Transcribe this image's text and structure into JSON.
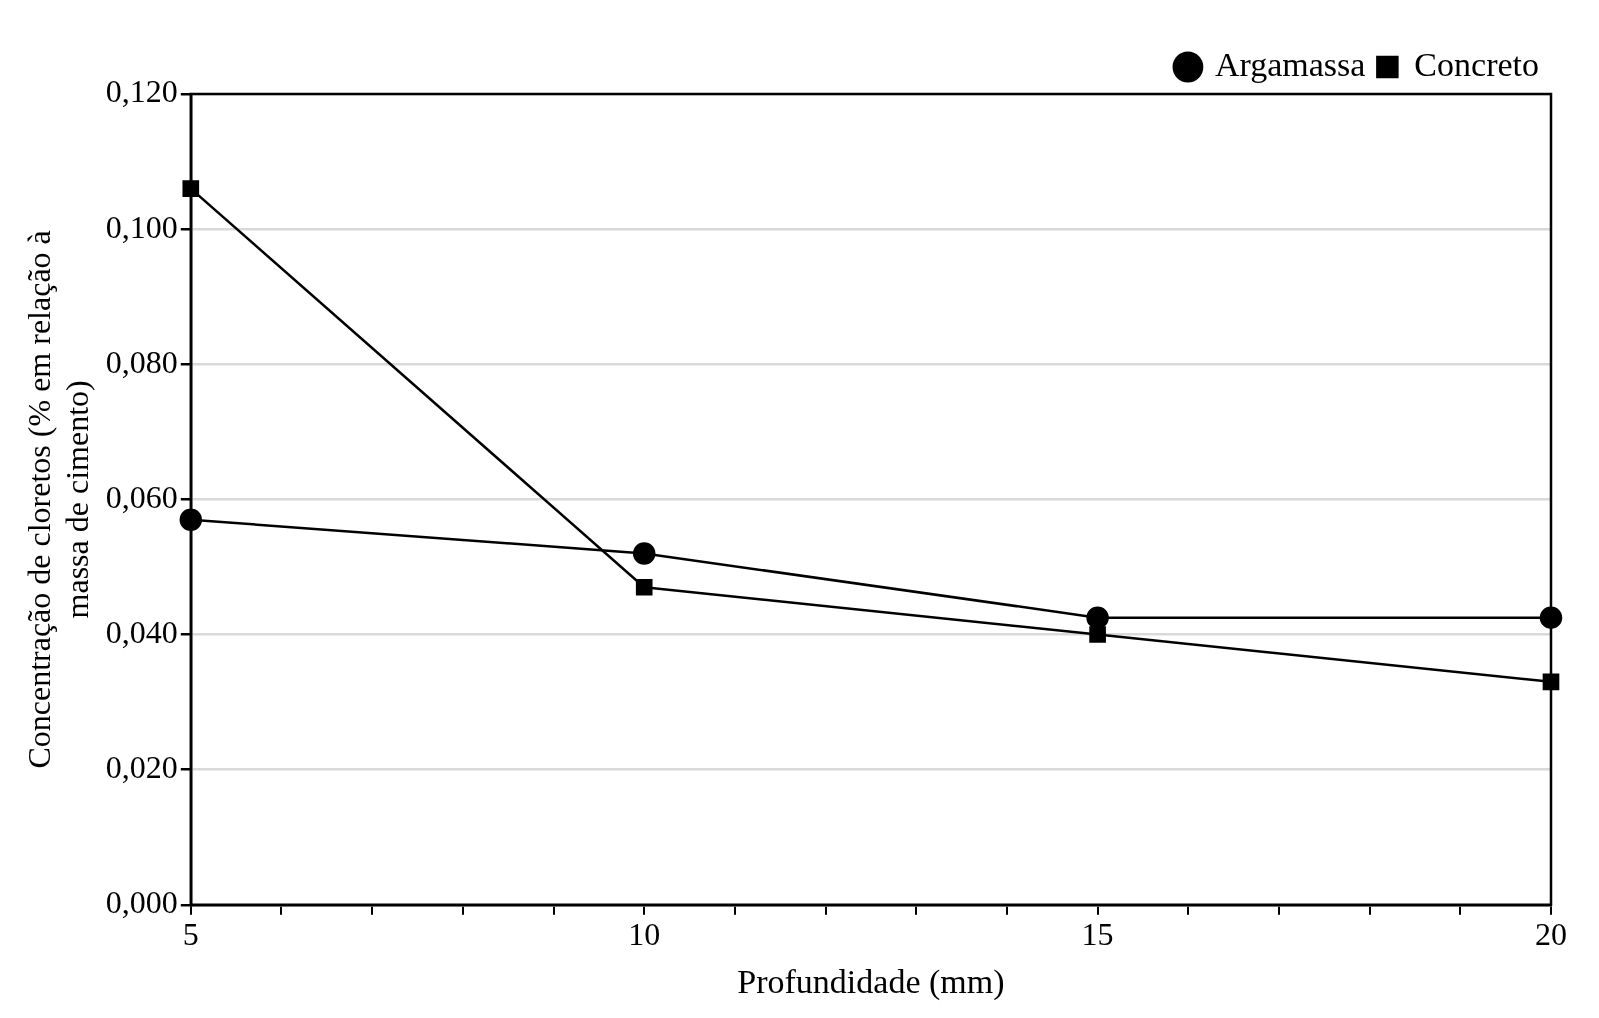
{
  "chart_data": {
    "type": "line",
    "xlabel": "Profundidade (mm)",
    "ylabel": "Concentração de cloretos (% em relação à massa de cimento)",
    "x": [
      5,
      10,
      15,
      20
    ],
    "series": [
      {
        "name": "Argamassa",
        "color": "#000000",
        "marker": "circle",
        "values": [
          0.057,
          0.052,
          0.0425,
          0.0425
        ]
      },
      {
        "name": "Concreto",
        "color": "#000000",
        "marker": "square",
        "values": [
          0.106,
          0.047,
          0.04,
          0.033
        ]
      }
    ],
    "xlim": [
      5,
      20
    ],
    "xticks": [
      5,
      {
        "value": 6,
        "label": null
      },
      {
        "value": 7,
        "label": null
      },
      {
        "value": 8,
        "label": null
      },
      {
        "value": 9,
        "label": null
      },
      10,
      {
        "value": 11,
        "label": null
      },
      {
        "value": 12,
        "label": null
      },
      {
        "value": 13,
        "label": null
      },
      {
        "value": 14,
        "label": null
      },
      15,
      {
        "value": 16,
        "label": null
      },
      {
        "value": 17,
        "label": null
      },
      {
        "value": 18,
        "label": null
      },
      {
        "value": 19,
        "label": null
      },
      20
    ],
    "ylim": [
      0,
      0.12
    ],
    "yticks": [
      {
        "value": 0,
        "label": "0,000"
      },
      {
        "value": 0.02,
        "label": "0,020"
      },
      {
        "value": 0.04,
        "label": "0,040"
      },
      {
        "value": 0.06,
        "label": "0,060"
      },
      {
        "value": 0.08,
        "label": "0,080"
      },
      {
        "value": 0.1,
        "label": "0,100"
      },
      {
        "value": 0.12,
        "label": "0,120"
      }
    ],
    "grid": "y",
    "legend": "top right",
    "line_style": "solid"
  }
}
